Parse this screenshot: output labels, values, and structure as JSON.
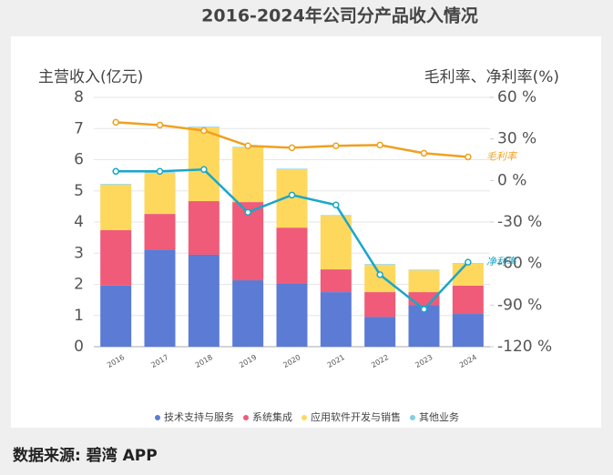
{
  "chart_data": {
    "type": "bar",
    "title": "2016-2024年公司分产品收入情况",
    "y_label": "主营收入(亿元)",
    "y2_label": "毛利率、净利率(%)",
    "source": "数据来源: 碧湾 APP",
    "categories": [
      "2016",
      "2017",
      "2018",
      "2019",
      "2020",
      "2021",
      "2022",
      "2023",
      "2024"
    ],
    "ylim": [
      0,
      8
    ],
    "yticks": [
      0,
      1,
      2,
      3,
      4,
      5,
      6,
      7,
      8
    ],
    "y2lim": [
      -120,
      60
    ],
    "y2ticks": [
      {
        "value": -120,
        "label": "-120 %"
      },
      {
        "value": -90,
        "label": "-90 %"
      },
      {
        "value": -60,
        "label": "-60 %"
      },
      {
        "value": -30,
        "label": "-30 %"
      },
      {
        "value": 0,
        "label": "0 %"
      },
      {
        "value": 30,
        "label": "30 %"
      },
      {
        "value": 60,
        "label": "60 %"
      }
    ],
    "grid": true,
    "legend": "bottom",
    "series": [
      {
        "name": "技术支持与服务",
        "color": "#5b7bd5",
        "values": [
          1.96,
          3.12,
          2.95,
          2.13,
          2.04,
          1.75,
          0.96,
          1.34,
          1.05
        ]
      },
      {
        "name": "系统集成",
        "color": "#ef5b78",
        "values": [
          1.78,
          1.14,
          1.72,
          2.51,
          1.78,
          0.73,
          0.79,
          0.41,
          0.91
        ]
      },
      {
        "name": "应用软件开发与销售",
        "color": "#fdd85d",
        "values": [
          1.46,
          1.32,
          2.37,
          1.75,
          1.87,
          1.72,
          0.88,
          0.7,
          0.7
        ]
      },
      {
        "name": "其他业务",
        "color": "#7fcfe8",
        "values": [
          0.02,
          0.02,
          0.02,
          0.02,
          0.02,
          0.02,
          0.02,
          0.02,
          0.02
        ]
      },
      {
        "name": "毛利率",
        "type": "line",
        "axis": "y2",
        "color": "#f0a020",
        "values": [
          42,
          40,
          36,
          25,
          23.6,
          25,
          25.6,
          19.7,
          17
        ]
      },
      {
        "name": "净利率",
        "type": "line",
        "axis": "y2",
        "color": "#1aa7c8",
        "values": [
          6.6,
          6.6,
          7.9,
          -23,
          -10.5,
          -17.7,
          -68,
          -93,
          -59
        ]
      }
    ]
  }
}
